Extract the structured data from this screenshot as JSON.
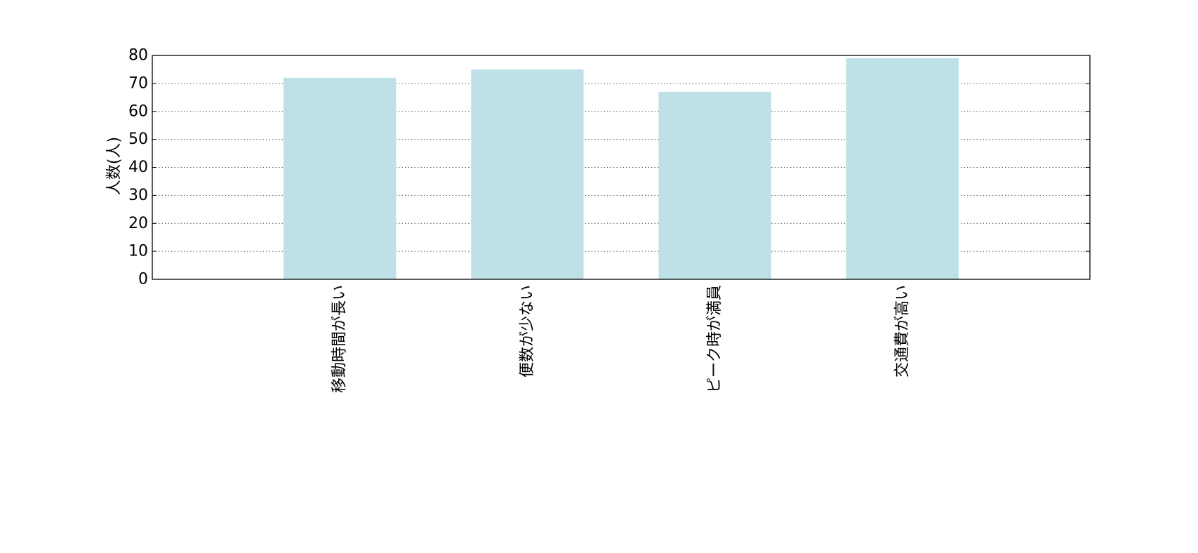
{
  "chart_data": {
    "type": "bar",
    "categories": [
      "移動時間が長い",
      "便数が少ない",
      "ピーク時が満員",
      "交通費が高い"
    ],
    "values": [
      72,
      75,
      67,
      79
    ],
    "title": "",
    "xlabel": "",
    "ylabel": "人数(人)",
    "ylim": [
      0,
      80
    ],
    "yticks": [
      0,
      10,
      20,
      30,
      40,
      50,
      60,
      70,
      80
    ],
    "grid": "y dotted",
    "bar_color": "#bde1e6",
    "legend": "none"
  }
}
